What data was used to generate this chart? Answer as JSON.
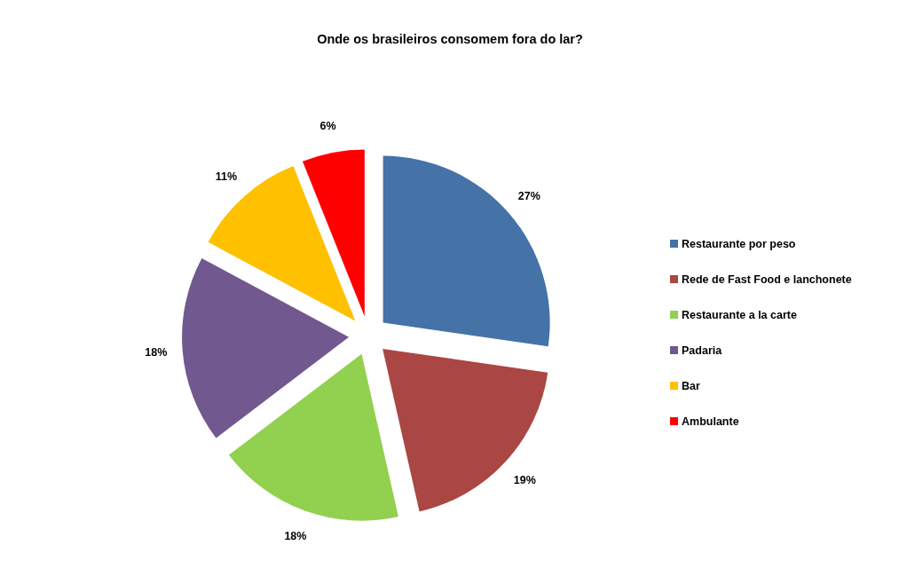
{
  "chart_data": {
    "type": "pie",
    "title": "Onde os brasileiros consomem fora do lar?",
    "categories": [
      "Restaurante por peso",
      "Rede de Fast Food e lanchonete",
      "Restaurante a la carte",
      "Padaria",
      "Bar",
      "Ambulante"
    ],
    "values": [
      27,
      19,
      18,
      18,
      11,
      6
    ],
    "colors": [
      "#4572a7",
      "#aa4643",
      "#92d050",
      "#71588f",
      "#ffc000",
      "#ff0000"
    ],
    "value_labels": [
      "27%",
      "19%",
      "18%",
      "18%",
      "11%",
      "6%"
    ],
    "legend": "right"
  }
}
